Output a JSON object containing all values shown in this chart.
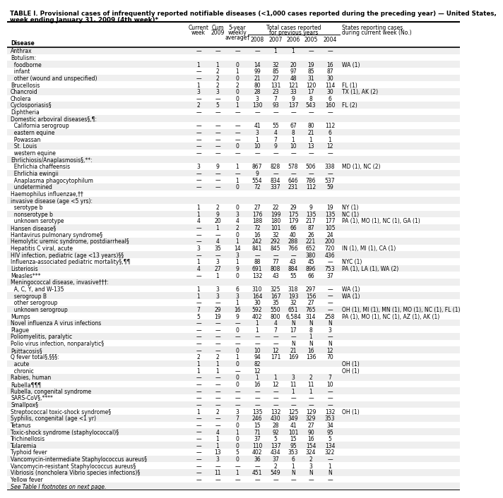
{
  "title_line1": "TABLE I. Provisional cases of infrequently reported notifiable diseases (<1,000 cases reported during the preceding year) — United States,",
  "title_line2": "week ending January 31, 2009 (4th week)*",
  "rows": [
    [
      "Anthrax",
      "—",
      "—",
      "—",
      "—",
      "1",
      "1",
      "—",
      "—",
      ""
    ],
    [
      "Botulism:",
      "",
      "",
      "",
      "",
      "",
      "",
      "",
      "",
      ""
    ],
    [
      "  foodborne",
      "1",
      "1",
      "0",
      "14",
      "32",
      "20",
      "19",
      "16",
      "WA (1)"
    ],
    [
      "  infant",
      "—",
      "2",
      "1",
      "99",
      "85",
      "97",
      "85",
      "87",
      ""
    ],
    [
      "  other (wound and unspecified)",
      "—",
      "2",
      "0",
      "21",
      "27",
      "48",
      "31",
      "30",
      ""
    ],
    [
      "Brucellosis",
      "1",
      "2",
      "2",
      "80",
      "131",
      "121",
      "120",
      "114",
      "FL (1)"
    ],
    [
      "Chancroid",
      "3",
      "3",
      "0",
      "28",
      "23",
      "33",
      "17",
      "30",
      "TX (1), AK (2)"
    ],
    [
      "Cholera",
      "—",
      "—",
      "0",
      "3",
      "7",
      "9",
      "8",
      "6",
      ""
    ],
    [
      "Cyclosporiasis§",
      "2",
      "5",
      "1",
      "130",
      "93",
      "137",
      "543",
      "160",
      "FL (2)"
    ],
    [
      "Diphtheria",
      "—",
      "—",
      "—",
      "—",
      "—",
      "—",
      "—",
      "—",
      ""
    ],
    [
      "Domestic arboviral diseases§,¶:",
      "",
      "",
      "",
      "",
      "",
      "",
      "",
      "",
      ""
    ],
    [
      "  California serogroup",
      "—",
      "—",
      "—",
      "41",
      "55",
      "67",
      "80",
      "112",
      ""
    ],
    [
      "  eastern equine",
      "—",
      "—",
      "—",
      "3",
      "4",
      "8",
      "21",
      "6",
      ""
    ],
    [
      "  Powassan",
      "—",
      "—",
      "—",
      "1",
      "7",
      "1",
      "1",
      "1",
      ""
    ],
    [
      "  St. Louis",
      "—",
      "—",
      "0",
      "10",
      "9",
      "10",
      "13",
      "12",
      ""
    ],
    [
      "  western equine",
      "—",
      "—",
      "—",
      "—",
      "—",
      "—",
      "—",
      "—",
      ""
    ],
    [
      "Ehrlichiosis/Anaplasmosis§,**:",
      "",
      "",
      "",
      "",
      "",
      "",
      "",
      "",
      ""
    ],
    [
      "  Ehrlichia chaffeensis",
      "3",
      "9",
      "1",
      "867",
      "828",
      "578",
      "506",
      "338",
      "MD (1), NC (2)"
    ],
    [
      "  Ehrlichia ewingii",
      "—",
      "—",
      "—",
      "9",
      "—",
      "—",
      "—",
      "—",
      ""
    ],
    [
      "  Anaplasma phagocytophilum",
      "—",
      "—",
      "1",
      "554",
      "834",
      "646",
      "786",
      "537",
      ""
    ],
    [
      "  undetermined",
      "—",
      "—",
      "0",
      "72",
      "337",
      "231",
      "112",
      "59",
      ""
    ],
    [
      "Haemophilus influenzae,††",
      "",
      "",
      "",
      "",
      "",
      "",
      "",
      "",
      ""
    ],
    [
      "invasive disease (age <5 yrs):",
      "",
      "",
      "",
      "",
      "",
      "",
      "",
      "",
      ""
    ],
    [
      "  serotype b",
      "1",
      "2",
      "0",
      "27",
      "22",
      "29",
      "9",
      "19",
      "NY (1)"
    ],
    [
      "  nonserotype b",
      "1",
      "9",
      "3",
      "176",
      "199",
      "175",
      "135",
      "135",
      "NC (1)"
    ],
    [
      "  unknown serotype",
      "4",
      "20",
      "4",
      "188",
      "180",
      "179",
      "217",
      "177",
      "PA (1), MO (1), NC (1), GA (1)"
    ],
    [
      "Hansen disease§",
      "—",
      "1",
      "2",
      "72",
      "101",
      "66",
      "87",
      "105",
      ""
    ],
    [
      "Hantavirus pulmonary syndrome§",
      "—",
      "—",
      "0",
      "16",
      "32",
      "40",
      "26",
      "24",
      ""
    ],
    [
      "Hemolytic uremic syndrome, postdiarrheal§",
      "—",
      "4",
      "1",
      "242",
      "292",
      "288",
      "221",
      "200",
      ""
    ],
    [
      "Hepatitis C viral, acute",
      "3",
      "35",
      "14",
      "841",
      "845",
      "766",
      "652",
      "720",
      "IN (1), MI (1), CA (1)"
    ],
    [
      "HIV infection, pediatric (age <13 years)§§",
      "—",
      "—",
      "3",
      "—",
      "—",
      "—",
      "380",
      "436",
      ""
    ],
    [
      "Influenza-associated pediatric mortality§,¶¶",
      "1",
      "3",
      "1",
      "88",
      "77",
      "43",
      "45",
      "—",
      "NYC (1)"
    ],
    [
      "Listeriosis",
      "4",
      "27",
      "9",
      "691",
      "808",
      "884",
      "896",
      "753",
      "PA (1), LA (1), WA (2)"
    ],
    [
      "Measles***",
      "—",
      "1",
      "0",
      "132",
      "43",
      "55",
      "66",
      "37",
      ""
    ],
    [
      "Meningococcal disease, invasive†††:",
      "",
      "",
      "",
      "",
      "",
      "",
      "",
      "",
      ""
    ],
    [
      "  A, C, Y, and W-135",
      "1",
      "3",
      "6",
      "310",
      "325",
      "318",
      "297",
      "—",
      "WA (1)"
    ],
    [
      "  serogroup B",
      "1",
      "3",
      "3",
      "164",
      "167",
      "193",
      "156",
      "—",
      "WA (1)"
    ],
    [
      "  other serogroup",
      "—",
      "—",
      "1",
      "30",
      "35",
      "32",
      "27",
      "—",
      ""
    ],
    [
      "  unknown serogroup",
      "7",
      "29",
      "16",
      "592",
      "550",
      "651",
      "765",
      "—",
      "OH (1), MI (1), MN (1), MO (1), NC (1), FL (1), AR (1)"
    ],
    [
      "Mumps",
      "5",
      "19",
      "9",
      "402",
      "800",
      "6,584",
      "314",
      "258",
      "PA (1), MO (1), NC (1), AZ (1), AK (1)"
    ],
    [
      "Novel influenza A virus infections",
      "—",
      "—",
      "—",
      "1",
      "4",
      "N",
      "N",
      "N",
      ""
    ],
    [
      "Plague",
      "—",
      "—",
      "0",
      "1",
      "7",
      "17",
      "8",
      "3",
      ""
    ],
    [
      "Poliomyelitis, paralytic",
      "—",
      "—",
      "—",
      "—",
      "—",
      "—",
      "1",
      "—",
      ""
    ],
    [
      "Polio virus infection, nonparalytic§",
      "—",
      "—",
      "—",
      "—",
      "—",
      "N",
      "N",
      "N",
      ""
    ],
    [
      "Psittacosis§",
      "—",
      "—",
      "0",
      "10",
      "12",
      "21",
      "16",
      "12",
      ""
    ],
    [
      "Q fever total§,§§§:",
      "2",
      "2",
      "1",
      "94",
      "171",
      "169",
      "136",
      "70",
      ""
    ],
    [
      "  acute",
      "1",
      "1",
      "0",
      "82",
      "",
      "",
      "",
      "",
      "OH (1)"
    ],
    [
      "  chronic",
      "1",
      "1",
      "—",
      "12",
      "",
      "",
      "",
      "",
      "OH (1)"
    ],
    [
      "Rabies, human",
      "—",
      "—",
      "0",
      "1",
      "1",
      "3",
      "2",
      "7",
      ""
    ],
    [
      "Rubella¶¶¶",
      "—",
      "—",
      "0",
      "16",
      "12",
      "11",
      "11",
      "10",
      ""
    ],
    [
      "Rubella, congenital syndrome",
      "—",
      "—",
      "—",
      "—",
      "—",
      "1",
      "1",
      "—",
      ""
    ],
    [
      "SARS-CoV§,****",
      "—",
      "—",
      "—",
      "—",
      "—",
      "—",
      "—",
      "—",
      ""
    ],
    [
      "Smallpox§",
      "—",
      "—",
      "—",
      "—",
      "—",
      "—",
      "—",
      "—",
      ""
    ],
    [
      "Streptococcal toxic-shock syndrome§",
      "1",
      "2",
      "3",
      "135",
      "132",
      "125",
      "129",
      "132",
      "OH (1)"
    ],
    [
      "Syphilis, congenital (age <1 yr)",
      "—",
      "—",
      "7",
      "246",
      "430",
      "349",
      "329",
      "353",
      ""
    ],
    [
      "Tetanus",
      "—",
      "—",
      "0",
      "15",
      "28",
      "41",
      "27",
      "34",
      ""
    ],
    [
      "Toxic-shock syndrome (staphylococcal)§",
      "—",
      "4",
      "1",
      "71",
      "92",
      "101",
      "90",
      "95",
      ""
    ],
    [
      "Trichinellosis",
      "—",
      "1",
      "0",
      "37",
      "5",
      "15",
      "16",
      "5",
      ""
    ],
    [
      "Tularemia",
      "—",
      "1",
      "0",
      "110",
      "137",
      "95",
      "154",
      "134",
      ""
    ],
    [
      "Typhoid fever",
      "—",
      "13",
      "5",
      "402",
      "434",
      "353",
      "324",
      "322",
      ""
    ],
    [
      "Vancomycin-intermediate Staphylococcus aureus§",
      "—",
      "3",
      "0",
      "36",
      "37",
      "6",
      "2",
      "—",
      ""
    ],
    [
      "Vancomycin-resistant Staphylococcus aureus§",
      "—",
      "—",
      "—",
      "—",
      "2",
      "1",
      "3",
      "1",
      ""
    ],
    [
      "Vibriosis (noncholera Vibrio species infections)§",
      "—",
      "11",
      "1",
      "451",
      "549",
      "N",
      "N",
      "N",
      ""
    ],
    [
      "Yellow fever",
      "—",
      "—",
      "—",
      "—",
      "—",
      "—",
      "—",
      "—",
      ""
    ],
    [
      "See Table I footnotes on next page.",
      "",
      "",
      "",
      "",
      "",
      "",
      "",
      "",
      ""
    ]
  ],
  "col_labels_line1": [
    "",
    "Current",
    "Cum",
    "5-year",
    "Total cases reported for previous years",
    "",
    "",
    "",
    "",
    "States reporting cases"
  ],
  "col_labels_line2": [
    "Disease",
    "week",
    "2009",
    "weekly",
    "2008",
    "2007",
    "2006",
    "2005",
    "2004",
    "during current week (No.)"
  ],
  "col_labels_line3": [
    "",
    "",
    "",
    "average†",
    "",
    "",
    "",
    "",
    "",
    ""
  ],
  "bg_color": "#ffffff",
  "font_size": 5.5,
  "title_font_size": 6.8
}
